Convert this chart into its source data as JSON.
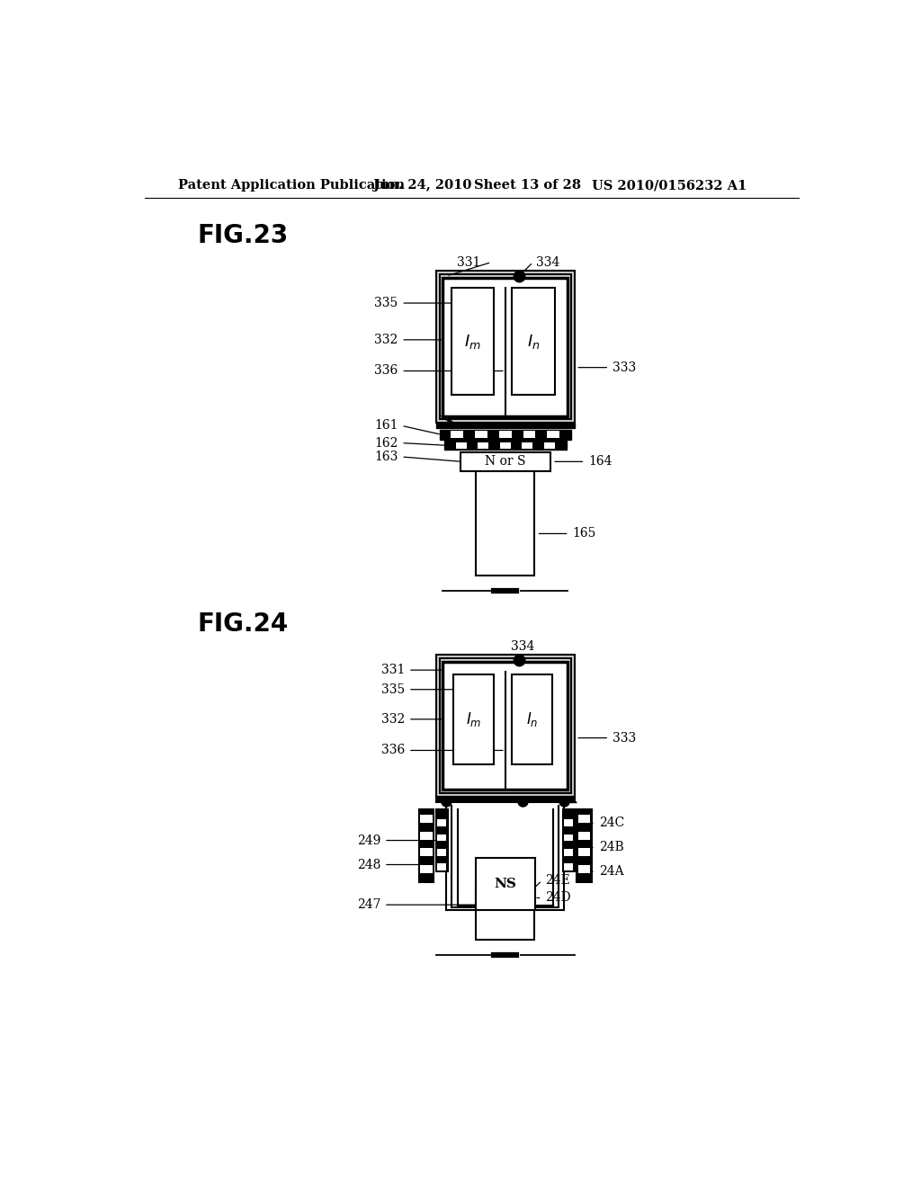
{
  "bg_color": "#ffffff",
  "header_text": "Patent Application Publication",
  "header_date": "Jun. 24, 2010",
  "header_sheet": "Sheet 13 of 28",
  "header_patent": "US 2010/0156232 A1",
  "fig23_title": "FIG.23",
  "fig24_title": "FIG.24"
}
